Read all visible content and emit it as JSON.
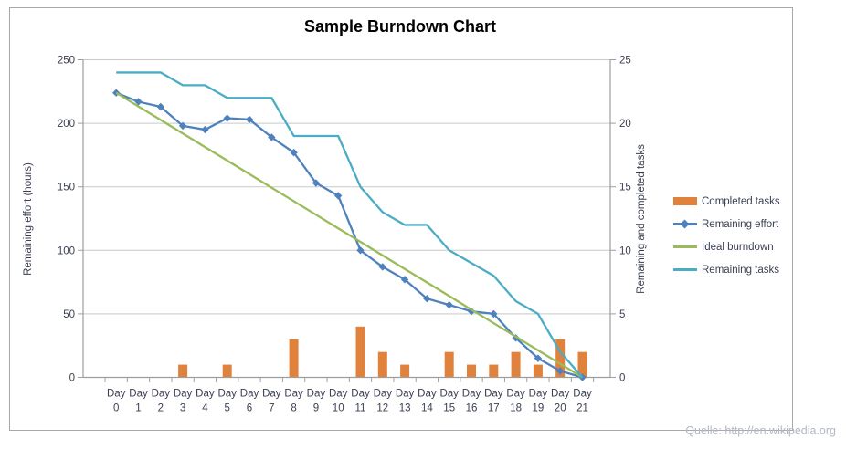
{
  "attribution": "Quelle: http://en.wikipedia.org",
  "colors": {
    "completed_tasks": "#e0823c",
    "remaining_effort": "#4f81bd",
    "ideal_burndown": "#9bbb59",
    "remaining_tasks": "#4bacc6",
    "gridline": "#c9c9c9",
    "axis": "#9e9e9e",
    "tick_text": "#3a3e52",
    "title_text": "#000000",
    "attribution_text": "#b3b7c6"
  },
  "chart_data": {
    "type": "combo",
    "title": "Sample Burndown Chart",
    "categories": [
      "Day 0",
      "Day 1",
      "Day 2",
      "Day 3",
      "Day 4",
      "Day 5",
      "Day 6",
      "Day 7",
      "Day 8",
      "Day 9",
      "Day 10",
      "Day 11",
      "Day 12",
      "Day 13",
      "Day 14",
      "Day 15",
      "Day 16",
      "Day 17",
      "Day 18",
      "Day 19",
      "Day 20",
      "Day 21"
    ],
    "left_axis": {
      "label": "Remaining effort (hours)",
      "min": 0,
      "max": 250,
      "step": 50,
      "ticks": [
        0,
        50,
        100,
        150,
        200,
        250
      ]
    },
    "right_axis": {
      "label": "Remaining and  completed tasks",
      "min": 0,
      "max": 25,
      "step": 5,
      "ticks": [
        0,
        5,
        10,
        15,
        20,
        25
      ]
    },
    "grid": "horizontal",
    "legend_position": "right",
    "series": [
      {
        "name": "Completed tasks",
        "type": "bar",
        "axis": "right",
        "color": "#e0823c",
        "values": [
          0,
          0,
          0,
          1,
          0,
          1,
          0,
          0,
          3,
          0,
          0,
          4,
          2,
          1,
          0,
          2,
          1,
          1,
          2,
          1,
          3,
          2
        ]
      },
      {
        "name": "Remaining effort",
        "type": "line",
        "marker": "diamond",
        "axis": "left",
        "color": "#4f81bd",
        "values": [
          224,
          217,
          213,
          198,
          195,
          204,
          203,
          189,
          177,
          153,
          143,
          100,
          87,
          77,
          62,
          57,
          52,
          50,
          31,
          15,
          5,
          0
        ]
      },
      {
        "name": "Ideal burndown",
        "type": "line",
        "marker": "none",
        "axis": "left",
        "color": "#9bbb59",
        "values": [
          224,
          213.3,
          202.7,
          192,
          181.3,
          170.7,
          160,
          149.3,
          138.7,
          128,
          117.3,
          106.7,
          96,
          85.3,
          74.7,
          64,
          53.3,
          42.7,
          32,
          21.3,
          10.7,
          0
        ]
      },
      {
        "name": "Remaining tasks",
        "type": "line",
        "marker": "none",
        "axis": "right",
        "color": "#4bacc6",
        "values": [
          24,
          24,
          24,
          23,
          23,
          22,
          22,
          22,
          19,
          19,
          19,
          15,
          13,
          12,
          12,
          10,
          9,
          8,
          6,
          5,
          2,
          0
        ]
      }
    ]
  }
}
